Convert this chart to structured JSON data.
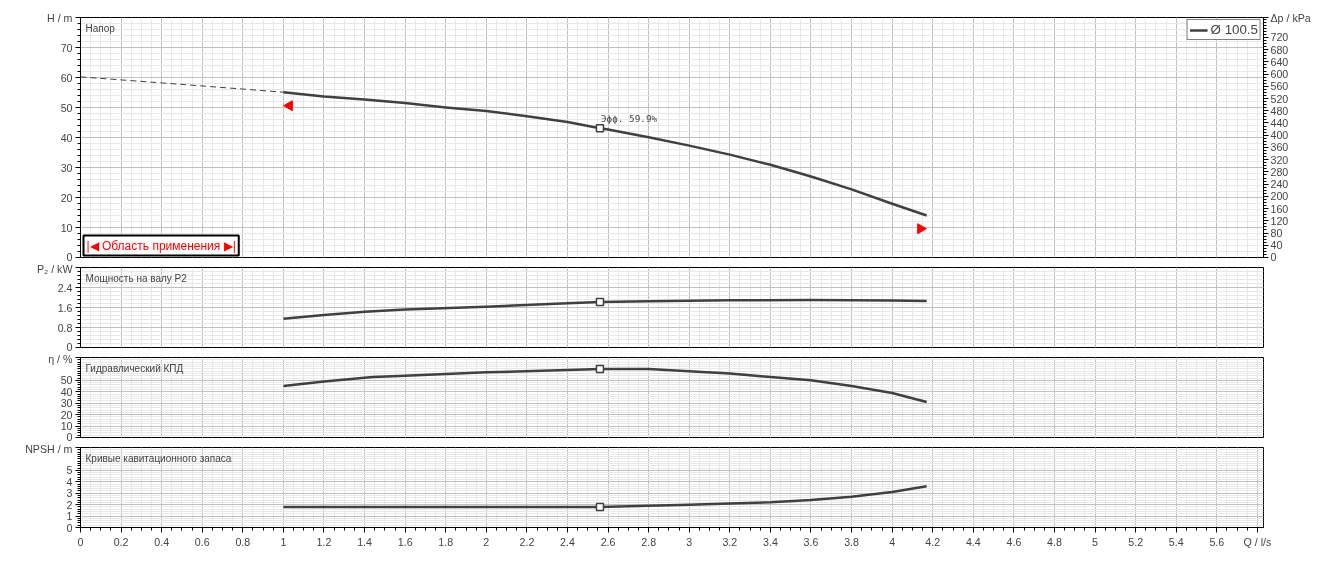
{
  "chart_data": [
    {
      "type": "line",
      "title": "Напор",
      "ylabel": "H / m",
      "y2label": "Δp / kPa",
      "xlim": [
        0,
        5.83
      ],
      "xticks": [
        0,
        0.2,
        0.4,
        0.6,
        0.8,
        1,
        1.2,
        1.4,
        1.6,
        1.8,
        2,
        2.2,
        2.4,
        2.6,
        2.8,
        3,
        3.2,
        3.4,
        3.6,
        3.8,
        4,
        4.2,
        4.4,
        4.6,
        4.8,
        5,
        5.2,
        5.4,
        5.6
      ],
      "ylim": [
        0,
        80
      ],
      "yticks": [
        0,
        10,
        20,
        30,
        40,
        50,
        60,
        70
      ],
      "y2lim": [
        0,
        785
      ],
      "y2ticks": [
        0,
        40,
        80,
        120,
        160,
        200,
        240,
        280,
        320,
        360,
        400,
        440,
        480,
        520,
        560,
        600,
        640,
        680,
        720
      ],
      "grid": true,
      "legend": "top right",
      "tick_labels": "y",
      "series": [
        {
          "name": "Ø 100.5",
          "color": "#404040",
          "x": [
            1.0,
            1.2,
            1.4,
            1.6,
            1.8,
            2.0,
            2.2,
            2.4,
            2.56,
            2.6,
            2.8,
            3.0,
            3.2,
            3.4,
            3.6,
            3.8,
            4.0,
            4.17
          ],
          "values": [
            55.1,
            53.7,
            52.7,
            51.5,
            50.0,
            48.8,
            47.1,
            45.2,
            43.1,
            42.7,
            40.1,
            37.3,
            34.3,
            30.9,
            27.0,
            22.7,
            17.9,
            14.0
          ]
        },
        {
          "color": "#404040",
          "line_style": "dashed",
          "x": [
            0,
            0.5,
            1.0
          ],
          "values": [
            60.2,
            57.7,
            55.1
          ]
        },
        {
          "type": "scatter",
          "marker": "square",
          "color": "#404040",
          "x": [
            2.56
          ],
          "values": [
            43.1
          ]
        },
        {
          "type": "scatter",
          "marker": "triangle",
          "color": "#ff0000",
          "x": [
            1.03,
            4.14
          ],
          "values": [
            50.6,
            9.6
          ]
        }
      ],
      "annotations": [
        "|◀ Область применения ▶|",
        {
          "text": "Эфф. 59.9%",
          "x": 2.56,
          "y": 43.1
        }
      ]
    },
    {
      "type": "line",
      "title": "Мощность на валу P2",
      "ylabel": "P₂ / kW",
      "xlim": [
        0,
        5.83
      ],
      "xticks": [
        0,
        0.2,
        0.4,
        0.6,
        0.8,
        1,
        1.2,
        1.4,
        1.6,
        1.8,
        2,
        2.2,
        2.4,
        2.6,
        2.8,
        3,
        3.2,
        3.4,
        3.6,
        3.8,
        4,
        4.2,
        4.4,
        4.6,
        4.8,
        5,
        5.2,
        5.4,
        5.6
      ],
      "ylim": [
        0,
        3.2
      ],
      "yticks": [
        0,
        0.8,
        1.6,
        2.4
      ],
      "grid": true,
      "tick_labels": "y",
      "series": [
        {
          "color": "#404040",
          "x": [
            1.0,
            1.2,
            1.4,
            1.6,
            2.0,
            2.4,
            2.56,
            2.8,
            3.2,
            3.6,
            4.0,
            4.17
          ],
          "values": [
            1.15,
            1.3,
            1.43,
            1.52,
            1.63,
            1.77,
            1.82,
            1.85,
            1.89,
            1.9,
            1.88,
            1.86
          ]
        },
        {
          "type": "scatter",
          "marker": "square",
          "color": "#404040",
          "x": [
            2.56
          ],
          "values": [
            1.82
          ]
        }
      ]
    },
    {
      "type": "line",
      "title": "Гидравлический КПД",
      "ylabel": "η / %",
      "xlim": [
        0,
        5.83
      ],
      "xticks": [
        0,
        0.2,
        0.4,
        0.6,
        0.8,
        1,
        1.2,
        1.4,
        1.6,
        1.8,
        2,
        2.2,
        2.4,
        2.6,
        2.8,
        3,
        3.2,
        3.4,
        3.6,
        3.8,
        4,
        4.2,
        4.4,
        4.6,
        4.8,
        5,
        5.2,
        5.4,
        5.6
      ],
      "ylim": [
        0,
        70
      ],
      "yticks": [
        0,
        10,
        20,
        30,
        40,
        50
      ],
      "grid": true,
      "tick_labels": "y",
      "series": [
        {
          "color": "#404040",
          "x": [
            1.0,
            1.2,
            1.44,
            1.6,
            2.0,
            2.4,
            2.56,
            2.8,
            3.0,
            3.2,
            3.4,
            3.6,
            3.8,
            4.0,
            4.17
          ],
          "values": [
            45,
            49,
            53,
            54,
            57,
            59,
            60,
            60,
            58,
            56,
            53,
            50,
            45,
            39,
            31
          ]
        },
        {
          "type": "scatter",
          "marker": "square",
          "color": "#404040",
          "x": [
            2.56
          ],
          "values": [
            60
          ]
        }
      ]
    },
    {
      "type": "line",
      "title": "Кривые кавитационного запаса",
      "ylabel": "NPSH / m",
      "xlim": [
        0,
        5.83
      ],
      "xticks": [
        0,
        0.2,
        0.4,
        0.6,
        0.8,
        1,
        1.2,
        1.4,
        1.6,
        1.8,
        2,
        2.2,
        2.4,
        2.6,
        2.8,
        3,
        3.2,
        3.4,
        3.6,
        3.8,
        4,
        4.2,
        4.4,
        4.6,
        4.8,
        5,
        5.2,
        5.4,
        5.6,
        {
          "value": 5.8,
          "label": "Q / l/s"
        }
      ],
      "ylim": [
        0,
        7
      ],
      "yticks": [
        0,
        1,
        2,
        3,
        4,
        5
      ],
      "grid": true,
      "series": [
        {
          "color": "#404040",
          "x": [
            1.0,
            1.6,
            2.2,
            2.56,
            2.8,
            3.0,
            3.2,
            3.4,
            3.6,
            3.8,
            4.0,
            4.17
          ],
          "values": [
            1.8,
            1.8,
            1.8,
            1.8,
            1.9,
            2.0,
            2.1,
            2.2,
            2.4,
            2.7,
            3.1,
            3.6
          ]
        },
        {
          "type": "scatter",
          "marker": "square",
          "color": "#404040",
          "x": [
            2.56
          ],
          "values": [
            1.8
          ]
        }
      ]
    }
  ]
}
